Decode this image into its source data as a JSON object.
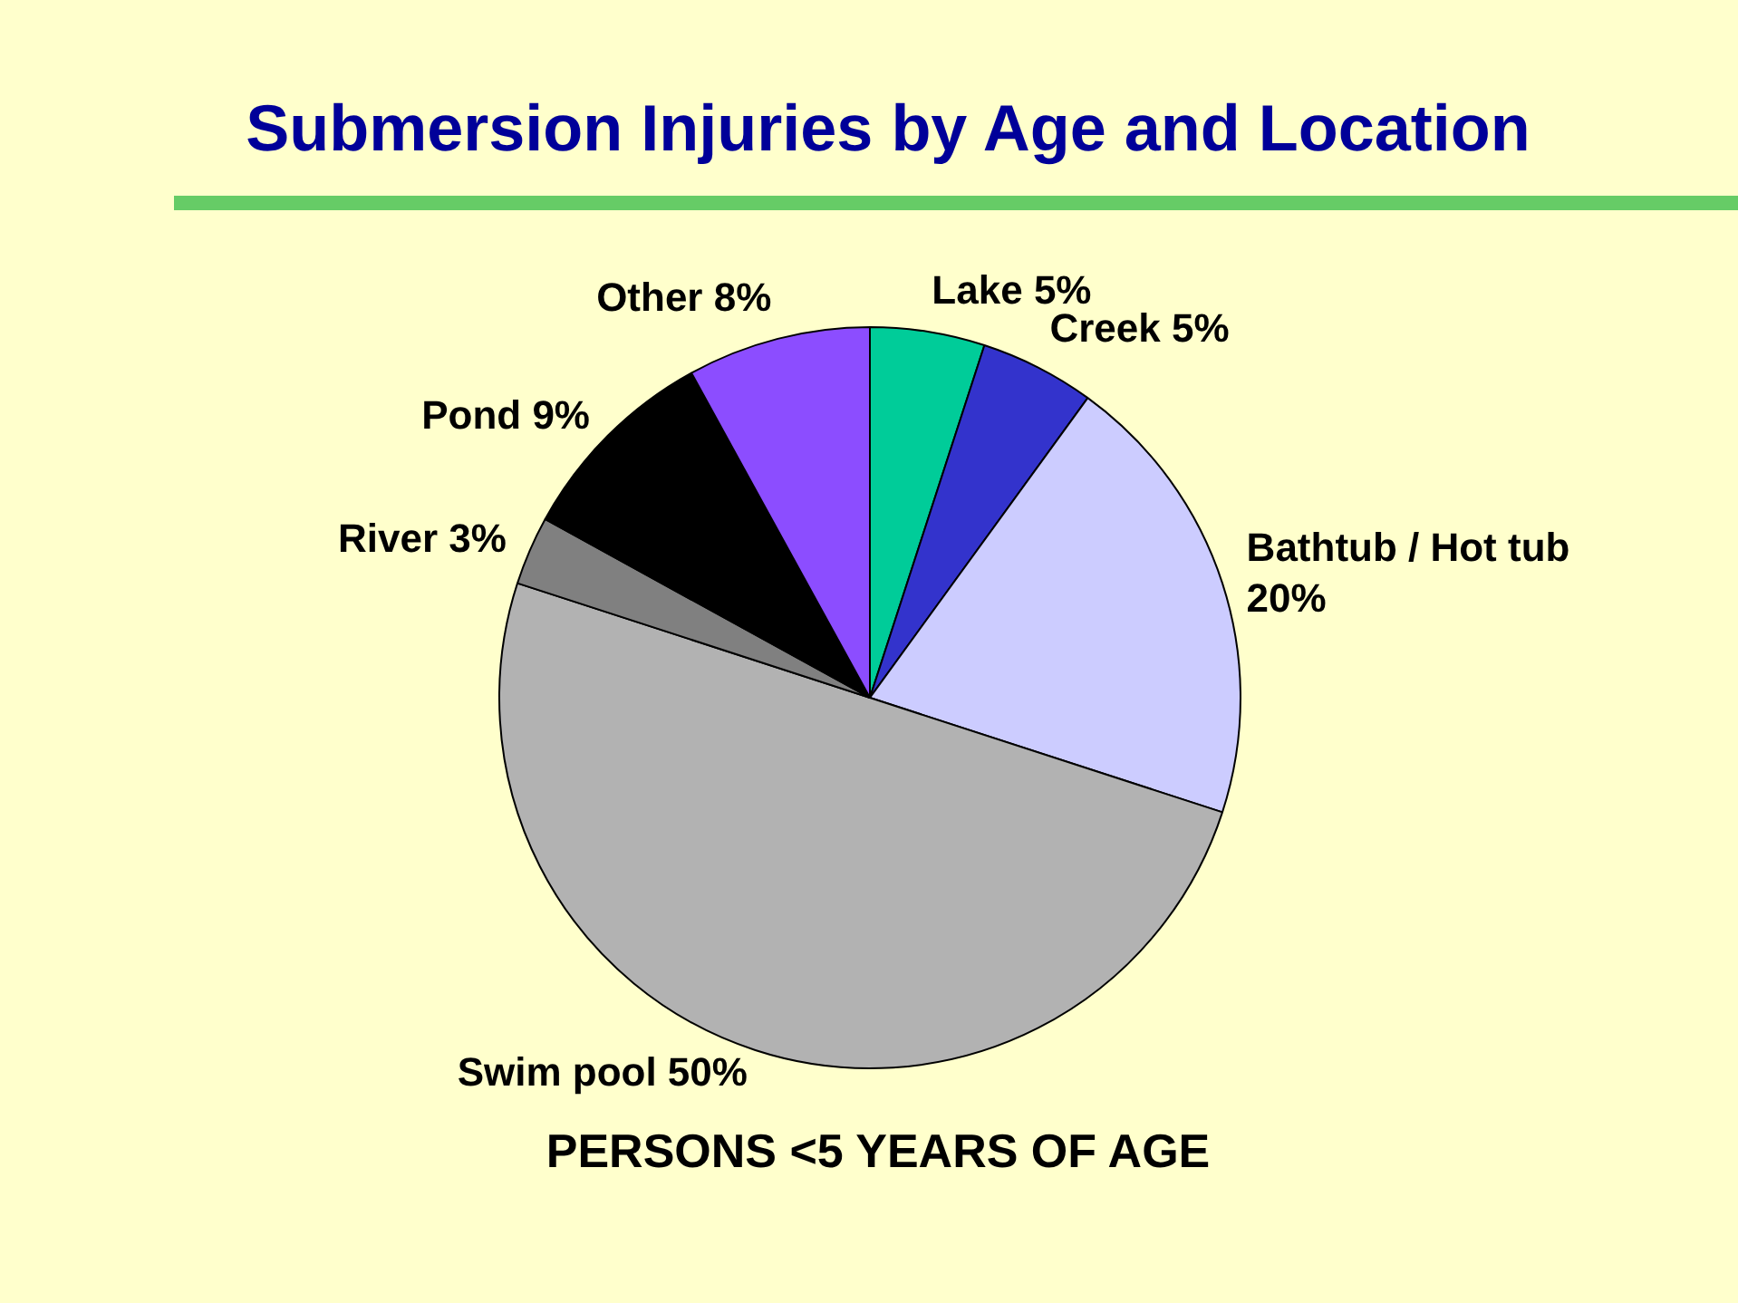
{
  "chart_data": {
    "type": "pie",
    "title": "Submersion Injuries by Age and Location",
    "subtitle": "PERSONS <5 YEARS OF AGE",
    "categories": [
      "Lake",
      "Creek",
      "Bathtub / Hot tub",
      "Swim pool",
      "River",
      "Pond",
      "Other"
    ],
    "values": [
      5,
      5,
      20,
      50,
      3,
      9,
      8
    ],
    "value_labels": [
      "5%",
      "5%",
      "20%",
      "50%",
      "3%",
      "9%",
      "8%"
    ],
    "colors": [
      "#00cc99",
      "#3333cc",
      "#ccccff",
      "#b2b2b2",
      "#808080",
      "#000000",
      "#8c4dff"
    ],
    "legend": false
  }
}
